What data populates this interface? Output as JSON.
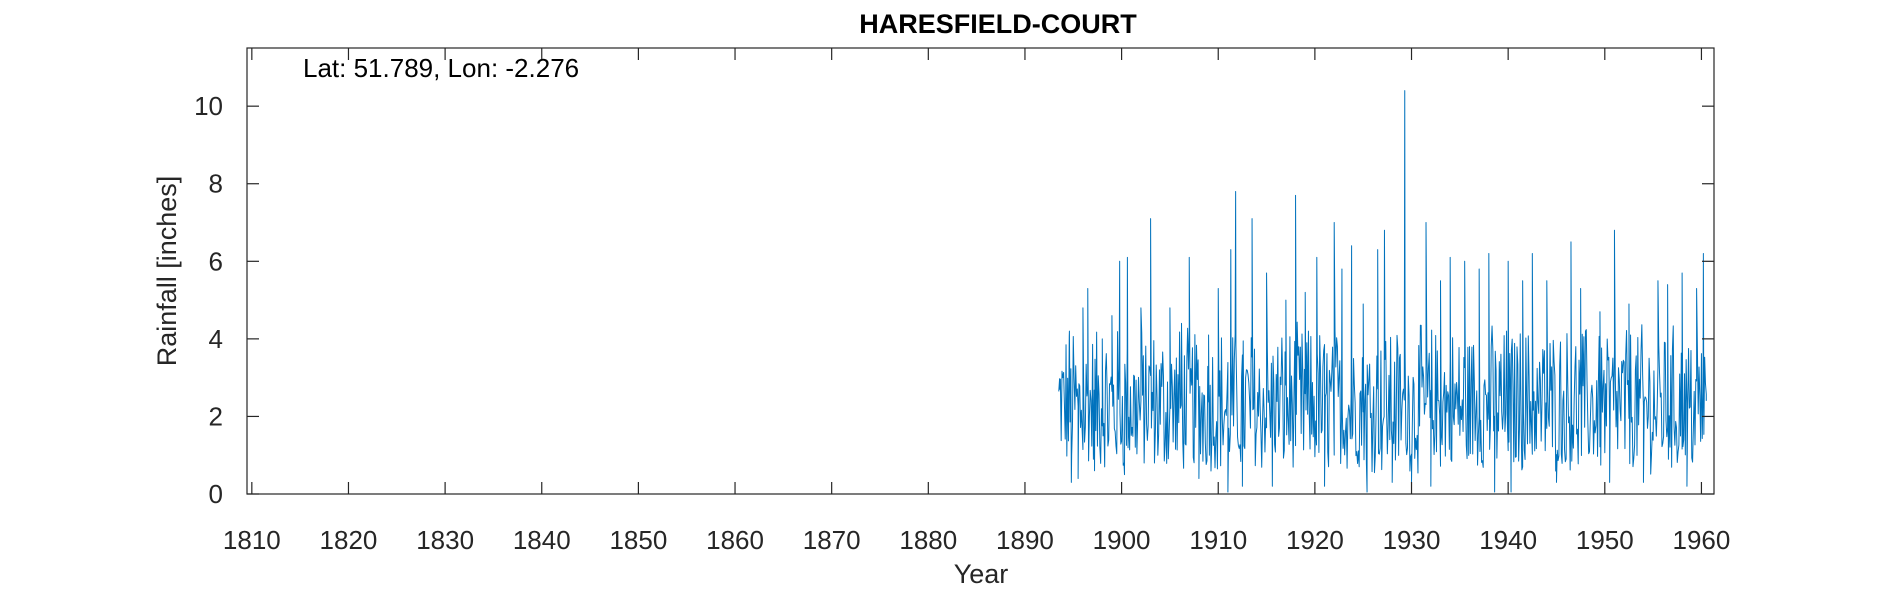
{
  "chart_data": {
    "type": "line",
    "title": "HARESFIELD-COURT",
    "annotation": "Lat: 51.789, Lon: -2.276",
    "xlabel": "Year",
    "ylabel": "Rainfall [inches]",
    "xlim": [
      1809.5,
      1961.3
    ],
    "ylim": [
      0,
      11.5
    ],
    "xticks": [
      1810,
      1820,
      1830,
      1840,
      1850,
      1860,
      1870,
      1880,
      1890,
      1900,
      1910,
      1920,
      1930,
      1940,
      1950,
      1960
    ],
    "yticks": [
      0,
      2,
      4,
      6,
      8,
      10
    ],
    "grid": false,
    "line_color": "#0072BD",
    "series": [
      {
        "x_start": 1893.5,
        "x_end": 1960.5,
        "step": "monthly",
        "anchors": [
          [
            1893.6,
            2.7
          ],
          [
            1894.2,
            1.9
          ],
          [
            1894.6,
            4.2
          ],
          [
            1894.8,
            0.3
          ],
          [
            1895.5,
            0.4
          ],
          [
            1896.0,
            4.8
          ],
          [
            1896.5,
            5.3
          ],
          [
            1897.2,
            0.6
          ],
          [
            1898.0,
            4.0
          ],
          [
            1899.0,
            4.6
          ],
          [
            1899.8,
            6.0
          ],
          [
            1900.3,
            0.5
          ],
          [
            1900.6,
            6.1
          ],
          [
            1902.0,
            4.8
          ],
          [
            1903.0,
            7.1
          ],
          [
            1903.4,
            0.8
          ],
          [
            1905.0,
            4.8
          ],
          [
            1906.2,
            4.4
          ],
          [
            1907.0,
            6.1
          ],
          [
            1908.0,
            0.4
          ],
          [
            1909.0,
            4.1
          ],
          [
            1910.0,
            5.3
          ],
          [
            1911.0,
            0.05
          ],
          [
            1911.3,
            6.3
          ],
          [
            1911.8,
            7.8
          ],
          [
            1912.5,
            0.2
          ],
          [
            1913.5,
            7.1
          ],
          [
            1915.0,
            5.7
          ],
          [
            1915.6,
            0.2
          ],
          [
            1917.0,
            5.0
          ],
          [
            1918.0,
            7.7
          ],
          [
            1919.0,
            5.2
          ],
          [
            1920.2,
            6.1
          ],
          [
            1921.0,
            0.2
          ],
          [
            1922.0,
            7.0
          ],
          [
            1922.8,
            5.8
          ],
          [
            1923.8,
            6.4
          ],
          [
            1925.0,
            4.9
          ],
          [
            1925.4,
            0.05
          ],
          [
            1926.5,
            6.3
          ],
          [
            1927.2,
            6.8
          ],
          [
            1928.0,
            0.3
          ],
          [
            1929.3,
            10.4
          ],
          [
            1930.0,
            0.3
          ],
          [
            1931.5,
            7.0
          ],
          [
            1932.0,
            0.2
          ],
          [
            1933.0,
            5.5
          ],
          [
            1934.0,
            6.1
          ],
          [
            1935.5,
            6.0
          ],
          [
            1937.0,
            5.8
          ],
          [
            1938.0,
            6.2
          ],
          [
            1938.6,
            0.05
          ],
          [
            1940.0,
            6.0
          ],
          [
            1940.3,
            0.05
          ],
          [
            1941.5,
            5.5
          ],
          [
            1942.5,
            6.2
          ],
          [
            1944.0,
            5.5
          ],
          [
            1945.0,
            0.3
          ],
          [
            1946.5,
            6.5
          ],
          [
            1947.5,
            5.3
          ],
          [
            1949.5,
            4.7
          ],
          [
            1950.5,
            0.3
          ],
          [
            1951.0,
            6.8
          ],
          [
            1952.5,
            4.9
          ],
          [
            1954.0,
            0.3
          ],
          [
            1955.5,
            5.5
          ],
          [
            1956.5,
            5.4
          ],
          [
            1958.0,
            5.7
          ],
          [
            1958.5,
            0.2
          ],
          [
            1959.5,
            5.3
          ],
          [
            1960.2,
            6.2
          ],
          [
            1960.5,
            2.4
          ]
        ],
        "typical_range": [
          0.8,
          4.2
        ]
      }
    ]
  }
}
